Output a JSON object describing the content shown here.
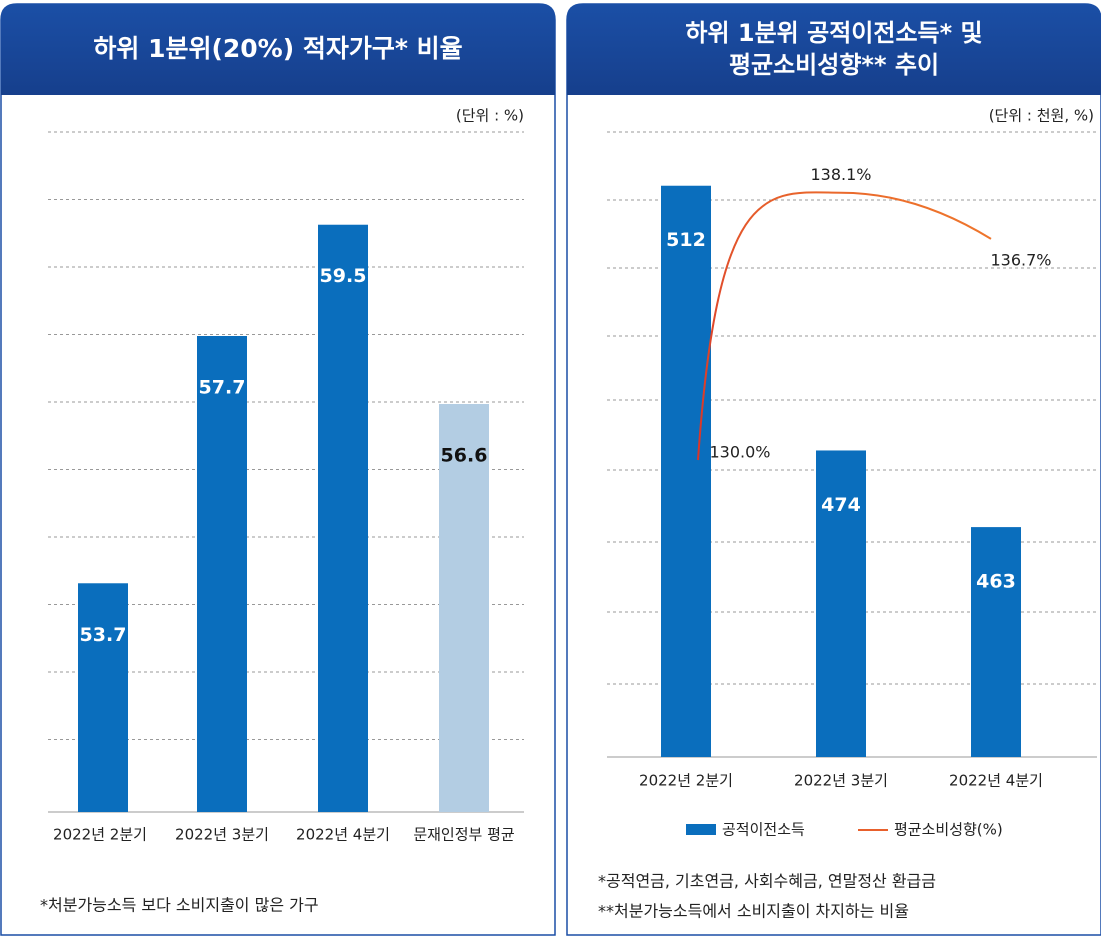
{
  "chart_data": [
    {
      "type": "bar",
      "title": "하위 1분위(20%) 적자가구* 비율",
      "unit": "(단위 : %)",
      "categories": [
        "2022년 2분기",
        "2022년 3분기",
        "2022년 4분기",
        "문재인정부 평균"
      ],
      "values": [
        53.7,
        57.7,
        59.5,
        56.6
      ],
      "colors": [
        "#0a6ebd",
        "#0a6ebd",
        "#0a6ebd",
        "#b3cde3"
      ],
      "label_colors": [
        "#ffffff",
        "#ffffff",
        "#ffffff",
        "#111111"
      ],
      "ylim": [
        50,
        61
      ],
      "note": "*처분가능소득 보다 소비지출이 많은 가구"
    },
    {
      "type": "bar-line",
      "title": [
        "하위 1분위 공적이전소득* 및",
        "평균소비성향** 추이"
      ],
      "unit": "(단위 : 천원, %)",
      "categories": [
        "2022년 2분기",
        "2022년 3분기",
        "2022년 4분기"
      ],
      "ylim": [
        430,
        520
      ],
      "y2lim": [
        121,
        140
      ],
      "series": [
        {
          "name": "공적이전소득",
          "type": "bar",
          "color": "#0a6ebd",
          "values": [
            512,
            474,
            463
          ]
        },
        {
          "name": "평균소비성향(%)",
          "type": "line",
          "axis": "y2",
          "color": "#e8602c",
          "values": [
            130.0,
            138.1,
            136.7
          ],
          "value_labels": [
            "130.0%",
            "138.1%",
            "136.7%"
          ]
        }
      ],
      "notes": [
        "*공적연금, 기초연금, 사회수혜금, 연말정산 환급금",
        "**처분가능소득에서 소비지출이 차지하는 비율"
      ]
    }
  ]
}
